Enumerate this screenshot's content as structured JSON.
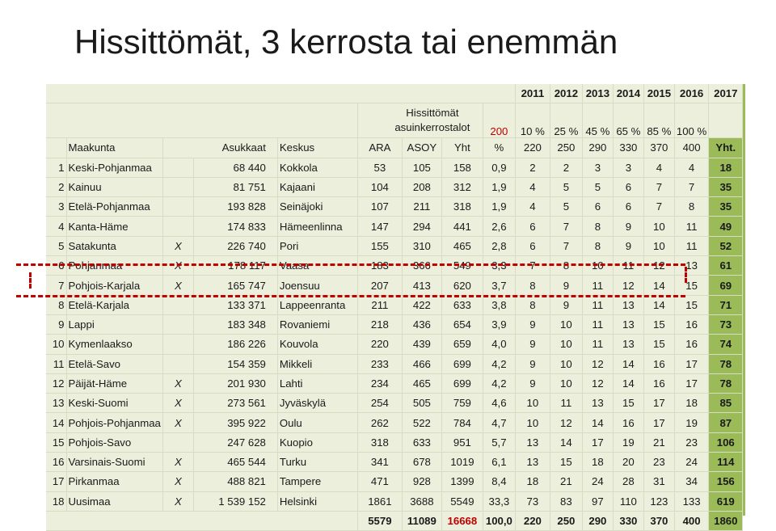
{
  "title": "Hissittömät, 3 kerrosta tai enemmän",
  "years": [
    "2011",
    "2012",
    "2013",
    "2014",
    "2015",
    "2016",
    "2017"
  ],
  "hissittomat_label": "Hissittömät",
  "asuinkerrostalot_label": "asuinkerrostalot",
  "base_value": "200",
  "percents": [
    "10 %",
    "25 %",
    "45 %",
    "65 %",
    "85 %",
    "100 %"
  ],
  "headers": [
    "Maakunta",
    "Asukkaat",
    "Keskus",
    "ARA",
    "ASOY",
    "Yht",
    "%",
    "220",
    "250",
    "290",
    "330",
    "370",
    "400",
    "Yht."
  ],
  "rows": [
    {
      "n": "1",
      "maakunta": "Keski-Pohjanmaa",
      "x": "",
      "asukkaat": "68 440",
      "keskus": "Kokkola",
      "ara": "53",
      "asoy": "105",
      "yht": "158",
      "pct": "0,9",
      "v": [
        "2",
        "2",
        "3",
        "3",
        "4",
        "4"
      ],
      "tot": "18"
    },
    {
      "n": "2",
      "maakunta": "Kainuu",
      "x": "",
      "asukkaat": "81 751",
      "keskus": "Kajaani",
      "ara": "104",
      "asoy": "208",
      "yht": "312",
      "pct": "1,9",
      "v": [
        "4",
        "5",
        "5",
        "6",
        "7",
        "7"
      ],
      "tot": "35"
    },
    {
      "n": "3",
      "maakunta": "Etelä-Pohjanmaa",
      "x": "",
      "asukkaat": "193 828",
      "keskus": "Seinäjoki",
      "ara": "107",
      "asoy": "211",
      "yht": "318",
      "pct": "1,9",
      "v": [
        "4",
        "5",
        "6",
        "6",
        "7",
        "8"
      ],
      "tot": "35"
    },
    {
      "n": "4",
      "maakunta": "Kanta-Häme",
      "x": "",
      "asukkaat": "174 833",
      "keskus": "Hämeenlinna",
      "ara": "147",
      "asoy": "294",
      "yht": "441",
      "pct": "2,6",
      "v": [
        "6",
        "7",
        "8",
        "9",
        "10",
        "11"
      ],
      "tot": "49"
    },
    {
      "n": "5",
      "maakunta": "Satakunta",
      "x": "X",
      "asukkaat": "226 740",
      "keskus": "Pori",
      "ara": "155",
      "asoy": "310",
      "yht": "465",
      "pct": "2,8",
      "v": [
        "6",
        "7",
        "8",
        "9",
        "10",
        "11"
      ],
      "tot": "52"
    },
    {
      "n": "6",
      "maakunta": "Pohjanmaa",
      "x": "X",
      "asukkaat": "178 117",
      "keskus": "Vaasa",
      "ara": "183",
      "asoy": "366",
      "yht": "549",
      "pct": "3,3",
      "v": [
        "7",
        "8",
        "10",
        "11",
        "12",
        "13"
      ],
      "tot": "61"
    },
    {
      "n": "7",
      "maakunta": "Pohjois-Karjala",
      "x": "X",
      "asukkaat": "165 747",
      "keskus": "Joensuu",
      "ara": "207",
      "asoy": "413",
      "yht": "620",
      "pct": "3,7",
      "v": [
        "8",
        "9",
        "11",
        "12",
        "14",
        "15"
      ],
      "tot": "69"
    },
    {
      "n": "8",
      "maakunta": "Etelä-Karjala",
      "x": "",
      "asukkaat": "133 371",
      "keskus": "Lappeenranta",
      "ara": "211",
      "asoy": "422",
      "yht": "633",
      "pct": "3,8",
      "v": [
        "8",
        "9",
        "11",
        "13",
        "14",
        "15"
      ],
      "tot": "71"
    },
    {
      "n": "9",
      "maakunta": "Lappi",
      "x": "",
      "asukkaat": "183 348",
      "keskus": "Rovaniemi",
      "ara": "218",
      "asoy": "436",
      "yht": "654",
      "pct": "3,9",
      "v": [
        "9",
        "10",
        "11",
        "13",
        "15",
        "16"
      ],
      "tot": "73"
    },
    {
      "n": "10",
      "maakunta": "Kymenlaakso",
      "x": "",
      "asukkaat": "186 226",
      "keskus": "Kouvola",
      "ara": "220",
      "asoy": "439",
      "yht": "659",
      "pct": "4,0",
      "v": [
        "9",
        "10",
        "11",
        "13",
        "15",
        "16"
      ],
      "tot": "74"
    },
    {
      "n": "11",
      "maakunta": "Etelä-Savo",
      "x": "",
      "asukkaat": "154 359",
      "keskus": "Mikkeli",
      "ara": "233",
      "asoy": "466",
      "yht": "699",
      "pct": "4,2",
      "v": [
        "9",
        "10",
        "12",
        "14",
        "16",
        "17"
      ],
      "tot": "78"
    },
    {
      "n": "12",
      "maakunta": "Päijät-Häme",
      "x": "X",
      "asukkaat": "201 930",
      "keskus": "Lahti",
      "ara": "234",
      "asoy": "465",
      "yht": "699",
      "pct": "4,2",
      "v": [
        "9",
        "10",
        "12",
        "14",
        "16",
        "17"
      ],
      "tot": "78"
    },
    {
      "n": "13",
      "maakunta": "Keski-Suomi",
      "x": "X",
      "asukkaat": "273 561",
      "keskus": "Jyväskylä",
      "ara": "254",
      "asoy": "505",
      "yht": "759",
      "pct": "4,6",
      "v": [
        "10",
        "11",
        "13",
        "15",
        "17",
        "18"
      ],
      "tot": "85"
    },
    {
      "n": "14",
      "maakunta": "Pohjois-Pohjanmaa",
      "x": "X",
      "asukkaat": "395 922",
      "keskus": "Oulu",
      "ara": "262",
      "asoy": "522",
      "yht": "784",
      "pct": "4,7",
      "v": [
        "10",
        "12",
        "14",
        "16",
        "17",
        "19"
      ],
      "tot": "87"
    },
    {
      "n": "15",
      "maakunta": "Pohjois-Savo",
      "x": "",
      "asukkaat": "247 628",
      "keskus": "Kuopio",
      "ara": "318",
      "asoy": "633",
      "yht": "951",
      "pct": "5,7",
      "v": [
        "13",
        "14",
        "17",
        "19",
        "21",
        "23"
      ],
      "tot": "106"
    },
    {
      "n": "16",
      "maakunta": "Varsinais-Suomi",
      "x": "X",
      "asukkaat": "465 544",
      "keskus": "Turku",
      "ara": "341",
      "asoy": "678",
      "yht": "1019",
      "pct": "6,1",
      "v": [
        "13",
        "15",
        "18",
        "20",
        "23",
        "24"
      ],
      "tot": "114"
    },
    {
      "n": "17",
      "maakunta": "Pirkanmaa",
      "x": "X",
      "asukkaat": "488 821",
      "keskus": "Tampere",
      "ara": "471",
      "asoy": "928",
      "yht": "1399",
      "pct": "8,4",
      "v": [
        "18",
        "21",
        "24",
        "28",
        "31",
        "34"
      ],
      "tot": "156"
    },
    {
      "n": "18",
      "maakunta": "Uusimaa",
      "x": "X",
      "asukkaat": "1 539 152",
      "keskus": "Helsinki",
      "ara": "1861",
      "asoy": "3688",
      "yht": "5549",
      "pct": "33,3",
      "v": [
        "73",
        "83",
        "97",
        "110",
        "123",
        "133"
      ],
      "tot": "619"
    }
  ],
  "totals": {
    "ara": "5579",
    "asoy": "11089",
    "yht": "16668",
    "pct": "100,0",
    "v": [
      "220",
      "250",
      "290",
      "330",
      "370",
      "400"
    ],
    "tot": "1860"
  },
  "colors": {
    "table_bg": "#ecefdc",
    "green": "#9bbb59",
    "red": "#c00000"
  }
}
